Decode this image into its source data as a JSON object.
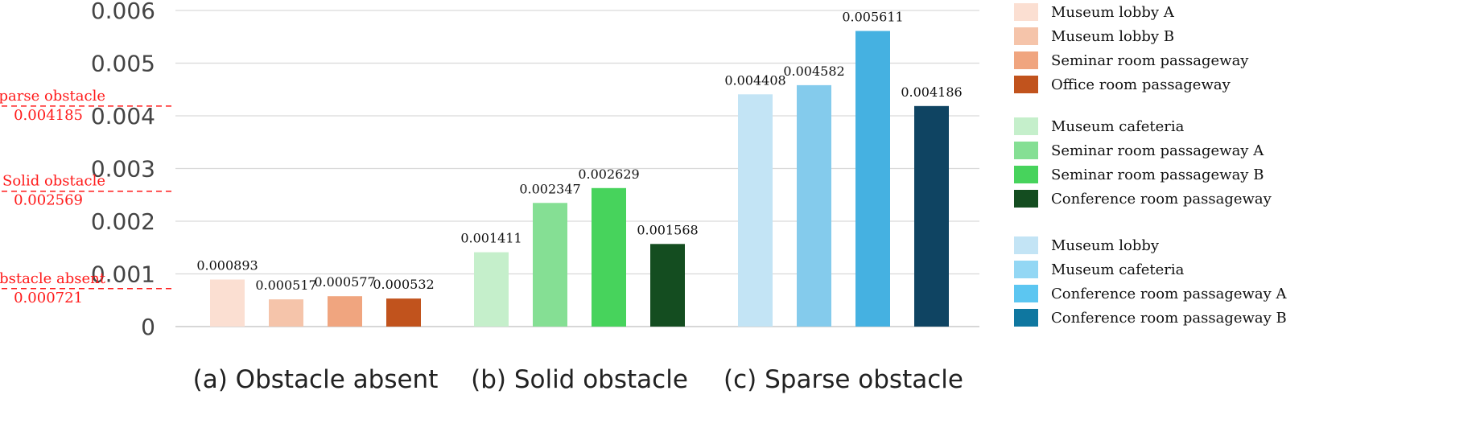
{
  "chart_data": {
    "type": "bar",
    "ylim": [
      0,
      0.006
    ],
    "y_ticks": [
      "0",
      "0.001",
      "0.002",
      "0.003",
      "0.004",
      "0.005",
      "0.006"
    ],
    "grid": true,
    "groups": [
      {
        "label": "(a) Obstacle absent",
        "series": [
          {
            "name": "Museum lobby A",
            "value": 0.000893,
            "value_label": "0.000893",
            "color": "#fbdfd2"
          },
          {
            "name": "Museum lobby B",
            "value": 0.000517,
            "value_label": "0.000517",
            "color": "#f5c4aa"
          },
          {
            "name": "Seminar room passageway",
            "value": 0.000577,
            "value_label": "0.000577",
            "color": "#f0a57f"
          },
          {
            "name": "Office room passageway",
            "value": 0.000532,
            "value_label": "0.000532",
            "color": "#c1531d"
          }
        ]
      },
      {
        "label": "(b) Solid obstacle",
        "series": [
          {
            "name": "Museum cafeteria",
            "value": 0.001411,
            "value_label": "0.001411",
            "color": "#c5efcb"
          },
          {
            "name": "Seminar room passageway A",
            "value": 0.002347,
            "value_label": "0.002347",
            "color": "#85df94"
          },
          {
            "name": "Seminar room passageway B",
            "value": 0.002629,
            "value_label": "0.002629",
            "color": "#47d35c"
          },
          {
            "name": "Conference room passageway",
            "value": 0.001568,
            "value_label": "0.001568",
            "color": "#144d20"
          }
        ]
      },
      {
        "label": "(c) Sparse obstacle",
        "series": [
          {
            "name": "Museum lobby",
            "value": 0.004408,
            "value_label": "0.004408",
            "color": "#c3e4f5"
          },
          {
            "name": "Museum cafeteria",
            "value": 0.004582,
            "value_label": "0.004582",
            "color": "#84cbec"
          },
          {
            "name": "Conference room passageway A",
            "value": 0.005611,
            "value_label": "0.005611",
            "color": "#45b1e1"
          },
          {
            "name": "Conference room passageway B",
            "value": 0.004186,
            "value_label": "0.004186",
            "color": "#0f4462"
          }
        ]
      }
    ],
    "reference_lines": [
      {
        "label": "Sparse obstacle",
        "value": 0.004185,
        "value_label": "0.004185"
      },
      {
        "label": "Solid obstacle",
        "value": 0.002569,
        "value_label": "0.002569"
      },
      {
        "label": "Obstacle absent",
        "value": 0.000721,
        "value_label": "0.000721"
      }
    ],
    "legend": {
      "placement": "right",
      "groups": [
        [
          {
            "name": "Museum lobby A",
            "color": "#fbdfd2"
          },
          {
            "name": "Museum lobby B",
            "color": "#f5c4aa"
          },
          {
            "name": "Seminar room passageway",
            "color": "#f0a57f"
          },
          {
            "name": "Office room passageway",
            "color": "#c1531d"
          }
        ],
        [
          {
            "name": "Museum cafeteria",
            "color": "#c5efcb"
          },
          {
            "name": "Seminar room passageway A",
            "color": "#85df94"
          },
          {
            "name": "Seminar room passageway B",
            "color": "#47d35c"
          },
          {
            "name": "Conference room passageway",
            "color": "#144d20"
          }
        ],
        [
          {
            "name": "Museum lobby",
            "color": "#c3e4f5"
          },
          {
            "name": "Museum cafeteria",
            "color": "#93d7f4"
          },
          {
            "name": "Conference room passageway A",
            "color": "#5cc6f1"
          },
          {
            "name": "Conference room passageway B",
            "color": "#0f77a0"
          }
        ]
      ]
    },
    "colors": {
      "grid": "#d9d9d9",
      "axis": "#bfbfbf",
      "reference": "#ff1a1a"
    }
  }
}
